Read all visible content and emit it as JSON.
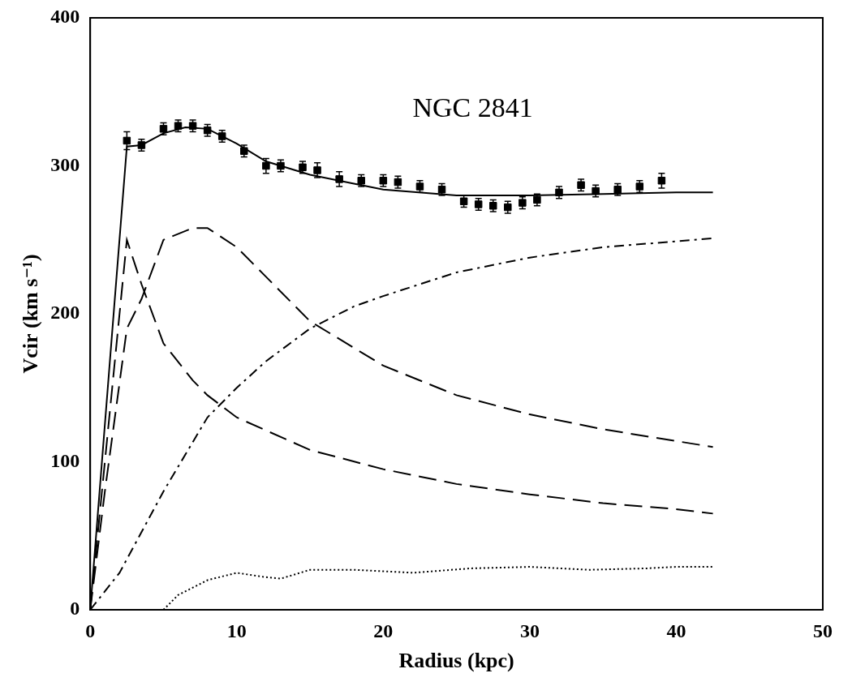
{
  "chart_data": {
    "type": "scatter",
    "annotations": [
      {
        "text": "NGC 2841",
        "x": 22,
        "y": 338
      }
    ],
    "x_label": "Radius (kpc)",
    "y_label": "Vcir (km s⁻¹)",
    "xlim": [
      0,
      50
    ],
    "xticks": [
      0,
      10,
      20,
      30,
      40,
      50
    ],
    "ylim": [
      0,
      400
    ],
    "yticks": [
      0,
      100,
      200,
      300,
      400
    ],
    "grid": false,
    "series": [
      {
        "type": "scatter",
        "marker": "square",
        "color": "#000000",
        "x": [
          2.5,
          3.5,
          5,
          6,
          7,
          8,
          9,
          10.5,
          12,
          13,
          14.5,
          15.5,
          17,
          18.5,
          20,
          21,
          22.5,
          24,
          25.5,
          26.5,
          27.5,
          28.5,
          29.5,
          30.5,
          32,
          33.5,
          34.5,
          36,
          37.5,
          39
        ],
        "values": [
          317,
          314,
          325,
          327,
          327,
          324,
          320,
          310,
          300,
          300,
          299,
          297,
          291,
          290,
          290,
          289,
          286,
          284,
          276,
          274,
          273,
          272,
          275,
          277,
          282,
          287,
          283,
          284,
          286,
          290
        ],
        "errors": [
          6,
          4,
          4,
          4,
          4,
          4,
          4,
          4,
          5,
          4,
          4,
          5,
          5,
          4,
          4,
          4,
          4,
          4,
          4,
          4,
          4,
          4,
          4,
          4,
          4,
          4,
          4,
          4,
          4,
          5
        ]
      },
      {
        "type": "line",
        "line_style": "solid",
        "color": "#000000",
        "x": [
          0,
          2.5,
          3.5,
          5,
          6.5,
          8,
          10,
          12,
          15,
          18,
          20,
          25,
          30,
          35,
          40,
          42.5
        ],
        "values": [
          0,
          313,
          314,
          322,
          326,
          325,
          315,
          303,
          294,
          288,
          284,
          280,
          280,
          281,
          282,
          282
        ]
      },
      {
        "type": "line",
        "line_style": "dashed",
        "color": "#000000",
        "x": [
          0,
          1,
          2.5,
          3.5,
          5,
          7,
          8,
          10,
          15,
          20,
          25,
          30,
          35,
          40,
          42.5
        ],
        "values": [
          0,
          100,
          250,
          220,
          180,
          155,
          145,
          130,
          108,
          95,
          85,
          78,
          72,
          68,
          65
        ]
      },
      {
        "type": "line",
        "line_style": "dashed",
        "color": "#000000",
        "x": [
          0,
          1,
          2.5,
          3.5,
          5,
          7,
          8,
          10,
          12,
          15,
          20,
          25,
          30,
          35,
          40,
          42.5
        ],
        "values": [
          0,
          80,
          190,
          210,
          250,
          258,
          258,
          245,
          225,
          195,
          165,
          145,
          132,
          122,
          114,
          110
        ]
      },
      {
        "type": "line",
        "line_style": "dash_dot",
        "color": "#000000",
        "x": [
          0,
          2,
          5,
          8,
          10,
          12,
          15,
          18,
          20,
          25,
          30,
          35,
          40,
          42.5
        ],
        "values": [
          0,
          25,
          80,
          130,
          150,
          168,
          190,
          205,
          212,
          228,
          238,
          245,
          249,
          251
        ]
      },
      {
        "type": "line",
        "line_style": "dotted",
        "color": "#000000",
        "x": [
          5,
          6,
          8,
          10,
          12,
          13,
          15,
          18,
          22,
          26,
          30,
          34,
          38,
          40,
          42.5
        ],
        "values": [
          0,
          10,
          20,
          25,
          22,
          21,
          27,
          27,
          25,
          28,
          29,
          27,
          28,
          29,
          29
        ]
      }
    ]
  }
}
